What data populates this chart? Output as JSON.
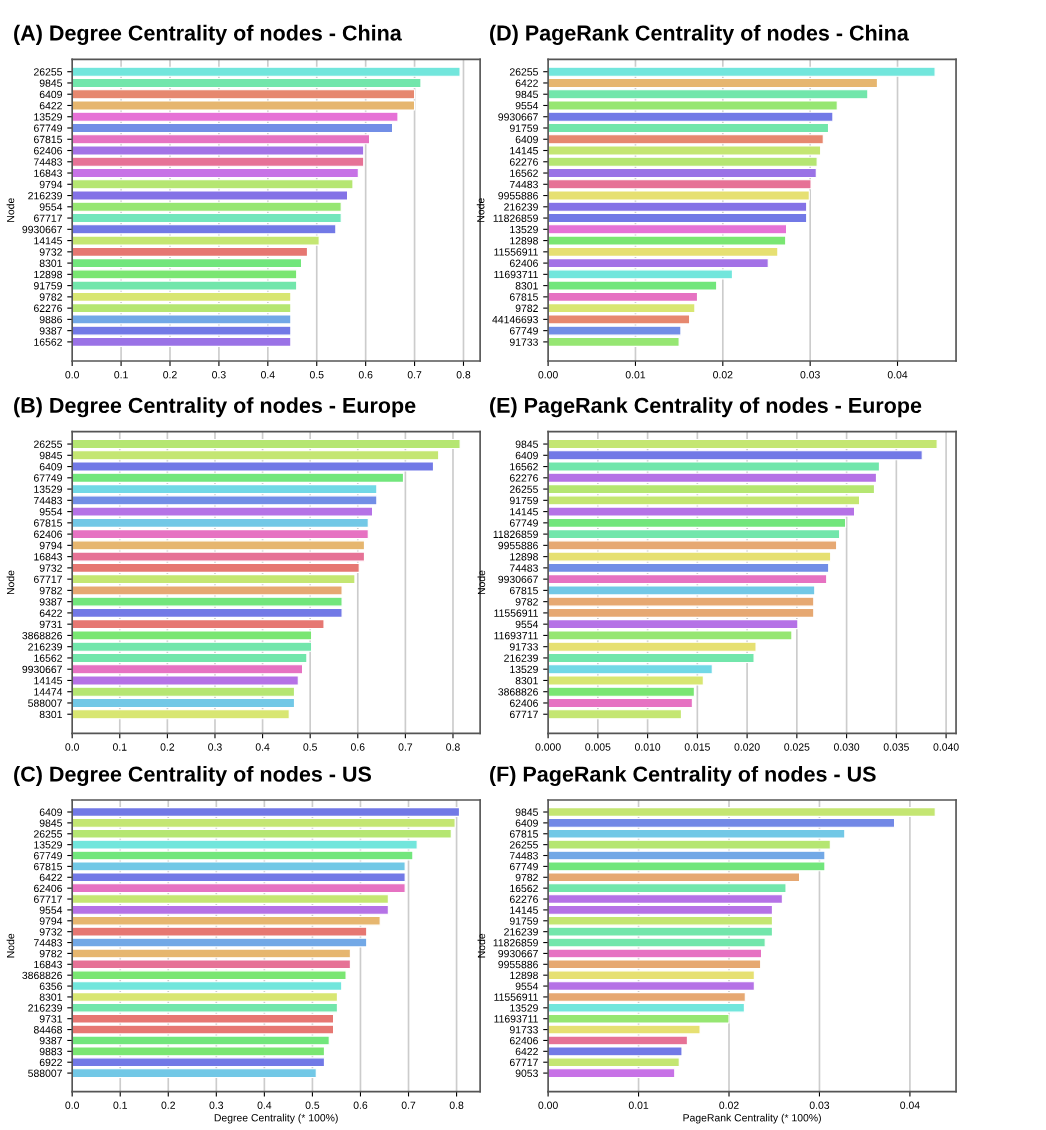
{
  "chart_data": [
    {
      "type": "bar",
      "orientation": "horizontal",
      "title": "(A) Degree Centrality of nodes - China",
      "ylabel": "Node",
      "grid": "x",
      "categories": [
        "26255",
        "9845",
        "6409",
        "6422",
        "13529",
        "67749",
        "67815",
        "62406",
        "74483",
        "16843",
        "9794",
        "216239",
        "9554",
        "67717",
        "9930667",
        "14145",
        "9732",
        "8301",
        "12898",
        "91759",
        "9782",
        "62276",
        "9886",
        "9387",
        "16562"
      ],
      "values": [
        0.793,
        0.713,
        0.7,
        0.7,
        0.666,
        0.655,
        0.608,
        0.596,
        0.596,
        0.585,
        0.574,
        0.563,
        0.55,
        0.55,
        0.539,
        0.505,
        0.481,
        0.469,
        0.459,
        0.459,
        0.447,
        0.447,
        0.447,
        0.447,
        0.447
      ],
      "colors": [
        "#72e6dc",
        "#72e6ab",
        "#e6886f",
        "#e6b66f",
        "#e672d6",
        "#728ee6",
        "#e672c2",
        "#a372e6",
        "#e67296",
        "#c772e6",
        "#b5e672",
        "#8472e6",
        "#96e672",
        "#72e6bc",
        "#7279e6",
        "#c4e672",
        "#e67772",
        "#72e67c",
        "#7ae672",
        "#72e6ab",
        "#d8e672",
        "#b5e672",
        "#72a8e6",
        "#7279e6",
        "#9a72e6"
      ],
      "xlim": [
        0,
        0.834
      ],
      "xticks": [
        {
          "value": 0,
          "label": "0.0"
        },
        0.1,
        0.2,
        0.3,
        0.4,
        0.5,
        0.6,
        0.7,
        0.8
      ]
    },
    {
      "type": "bar",
      "orientation": "horizontal",
      "title": "(D) PageRank Centrality of nodes - China",
      "ylabel": "Node",
      "grid": "x",
      "categories": [
        "26255",
        "6422",
        "9845",
        "9554",
        "9930667",
        "91759",
        "6409",
        "14145",
        "62276",
        "16562",
        "74483",
        "9955886",
        "216239",
        "11826859",
        "13529",
        "12898",
        "11556911",
        "62406",
        "11693711",
        "8301",
        "67815",
        "9782",
        "44146693",
        "67749",
        "91733"
      ],
      "values": [
        0.0443,
        0.0377,
        0.0366,
        0.0331,
        0.0326,
        0.0321,
        0.0315,
        0.0312,
        0.0308,
        0.0307,
        0.0301,
        0.0299,
        0.0296,
        0.0296,
        0.0273,
        0.0272,
        0.0263,
        0.0252,
        0.0211,
        0.0193,
        0.0171,
        0.0168,
        0.0162,
        0.0152,
        0.015
      ],
      "colors": [
        "#72e6dc",
        "#e6b66f",
        "#72e6ab",
        "#96e672",
        "#7279e6",
        "#72e6ab",
        "#e6886f",
        "#c4e672",
        "#b5e672",
        "#9a72e6",
        "#e67296",
        "#e6e072",
        "#8472e6",
        "#7279e6",
        "#e672d6",
        "#7ae672",
        "#e6e072",
        "#a372e6",
        "#72e6dc",
        "#72e67c",
        "#e672c2",
        "#d8e672",
        "#e6886f",
        "#728ee6",
        "#96e672"
      ],
      "xlim": [
        0,
        0.0467
      ],
      "xticks": [
        {
          "value": 0,
          "label": "0.00"
        },
        0.01,
        0.02,
        0.03,
        0.04
      ]
    },
    {
      "type": "bar",
      "orientation": "horizontal",
      "title": "(B) Degree Centrality of nodes - Europe",
      "ylabel": "Node",
      "grid": "x",
      "categories": [
        "26255",
        "9845",
        "6409",
        "67749",
        "13529",
        "74483",
        "9554",
        "67815",
        "62406",
        "9794",
        "16843",
        "9732",
        "67717",
        "9782",
        "9387",
        "6422",
        "9731",
        "3868826",
        "216239",
        "16562",
        "9930667",
        "14145",
        "14474",
        "588007",
        "8301"
      ],
      "values": [
        0.815,
        0.77,
        0.759,
        0.696,
        0.64,
        0.64,
        0.631,
        0.622,
        0.622,
        0.614,
        0.614,
        0.603,
        0.594,
        0.567,
        0.567,
        0.567,
        0.529,
        0.503,
        0.503,
        0.493,
        0.484,
        0.475,
        0.467,
        0.467,
        0.456
      ],
      "colors": [
        "#b5e672",
        "#c4e672",
        "#7279e6",
        "#72e67c",
        "#72d8e6",
        "#728ee6",
        "#b572e6",
        "#72c8e6",
        "#e672c2",
        "#e6b66f",
        "#e67296",
        "#e67772",
        "#c4e672",
        "#e6a872",
        "#72e67c",
        "#7279e6",
        "#e67772",
        "#7ae672",
        "#72e6ab",
        "#72e6ab",
        "#e672c2",
        "#b572e6",
        "#b5e672",
        "#72c8e6",
        "#d8e672"
      ],
      "xlim": [
        0,
        0.857
      ],
      "xticks": [
        {
          "value": 0,
          "label": "0.0"
        },
        0.1,
        0.2,
        0.3,
        0.4,
        0.5,
        0.6,
        0.7,
        0.8
      ]
    },
    {
      "type": "bar",
      "orientation": "horizontal",
      "title": "(E) PageRank Centrality of nodes - Europe",
      "ylabel": "Node",
      "grid": "x",
      "categories": [
        "9845",
        "6409",
        "16562",
        "62276",
        "26255",
        "91759",
        "14145",
        "67749",
        "11826859",
        "9955886",
        "12898",
        "74483",
        "9930667",
        "67815",
        "9782",
        "11556911",
        "9554",
        "11693711",
        "91733",
        "216239",
        "13529",
        "8301",
        "3868826",
        "62406",
        "67717"
      ],
      "values": [
        0.0391,
        0.0376,
        0.0333,
        0.033,
        0.0328,
        0.0313,
        0.0308,
        0.0299,
        0.0293,
        0.029,
        0.0284,
        0.0282,
        0.028,
        0.0268,
        0.0267,
        0.0267,
        0.0251,
        0.0245,
        0.0209,
        0.0207,
        0.0165,
        0.0156,
        0.0147,
        0.0145,
        0.0134
      ],
      "colors": [
        "#c4e672",
        "#7279e6",
        "#72e6ab",
        "#b572e6",
        "#b5e672",
        "#c4e672",
        "#b572e6",
        "#72e67c",
        "#72e6ab",
        "#e6a872",
        "#e6e072",
        "#728ee6",
        "#e672c2",
        "#72c8e6",
        "#e6a872",
        "#e6a872",
        "#b572e6",
        "#96e672",
        "#e6e072",
        "#72e6ab",
        "#72d8e6",
        "#d8e672",
        "#7ae672",
        "#e672c2",
        "#c4e672"
      ],
      "xlim": [
        0,
        0.041
      ],
      "xticks": [
        {
          "value": 0,
          "label": "0.000"
        },
        {
          "value": 0.005,
          "label": "0.005"
        },
        {
          "value": 0.01,
          "label": "0.010"
        },
        {
          "value": 0.015,
          "label": "0.015"
        },
        {
          "value": 0.02,
          "label": "0.020"
        },
        {
          "value": 0.025,
          "label": "0.025"
        },
        {
          "value": 0.03,
          "label": "0.030"
        },
        {
          "value": 0.035,
          "label": "0.035"
        },
        {
          "value": 0.04,
          "label": "0.040"
        }
      ]
    },
    {
      "type": "bar",
      "orientation": "horizontal",
      "title": "(C) Degree Centrality of nodes - US",
      "xlabel": "Degree Centrality (* 100%)",
      "ylabel": "Node",
      "grid": "x",
      "categories": [
        "6409",
        "9845",
        "26255",
        "13529",
        "67749",
        "67815",
        "6422",
        "62406",
        "67717",
        "9554",
        "9794",
        "9732",
        "74483",
        "9782",
        "16843",
        "3868826",
        "6356",
        "8301",
        "216239",
        "9731",
        "84468",
        "9387",
        "9883",
        "6922",
        "588007"
      ],
      "values": [
        0.806,
        0.797,
        0.789,
        0.718,
        0.709,
        0.693,
        0.693,
        0.693,
        0.658,
        0.658,
        0.641,
        0.613,
        0.613,
        0.579,
        0.579,
        0.57,
        0.561,
        0.552,
        0.552,
        0.544,
        0.544,
        0.535,
        0.525,
        0.525,
        0.508
      ],
      "colors": [
        "#7279e6",
        "#c4e672",
        "#b5e672",
        "#72e6dc",
        "#72e67c",
        "#72c8e6",
        "#7279e6",
        "#e672c2",
        "#c4e672",
        "#b572e6",
        "#e6b66f",
        "#e67772",
        "#72a8e6",
        "#e6b66f",
        "#e67296",
        "#7ae672",
        "#72e6dc",
        "#d8e672",
        "#72e6ab",
        "#e67772",
        "#e67772",
        "#72e67c",
        "#7ae672",
        "#7279e6",
        "#72c8e6"
      ],
      "xlim": [
        0,
        0.849
      ],
      "xticks": [
        {
          "value": 0,
          "label": "0.0"
        },
        0.1,
        0.2,
        0.3,
        0.4,
        0.5,
        0.6,
        0.7,
        0.8
      ]
    },
    {
      "type": "bar",
      "orientation": "horizontal",
      "title": "(F) PageRank Centrality of nodes - US",
      "xlabel": "PageRank Centrality (* 100%)",
      "ylabel": "Node",
      "grid": "x",
      "categories": [
        "9845",
        "6409",
        "67815",
        "26255",
        "74483",
        "67749",
        "9782",
        "16562",
        "62276",
        "14145",
        "91759",
        "216239",
        "11826859",
        "9930667",
        "9955886",
        "12898",
        "9554",
        "11556911",
        "13529",
        "11693711",
        "91733",
        "62406",
        "6422",
        "67717",
        "9053"
      ],
      "values": [
        0.0428,
        0.0383,
        0.0328,
        0.0312,
        0.0306,
        0.0306,
        0.0278,
        0.0263,
        0.0259,
        0.0248,
        0.0248,
        0.0248,
        0.024,
        0.0236,
        0.0235,
        0.0228,
        0.0228,
        0.0218,
        0.0217,
        0.02,
        0.0168,
        0.0154,
        0.0148,
        0.0145,
        0.014
      ],
      "colors": [
        "#c4e672",
        "#7288e6",
        "#72c8e6",
        "#b5e672",
        "#72a8e6",
        "#72e67c",
        "#e6a872",
        "#72e6ab",
        "#b572e6",
        "#b572e6",
        "#c4e672",
        "#72e6ab",
        "#72e6ab",
        "#e672c2",
        "#e6a872",
        "#e6e072",
        "#b572e6",
        "#e6a872",
        "#72e6dc",
        "#96e672",
        "#e6e072",
        "#e67296",
        "#7279e6",
        "#c4e672",
        "#c772e6"
      ],
      "xlim": [
        0,
        0.0451
      ],
      "xticks": [
        {
          "value": 0,
          "label": "0.00"
        },
        0.01,
        0.02,
        0.03,
        0.04
      ]
    }
  ]
}
